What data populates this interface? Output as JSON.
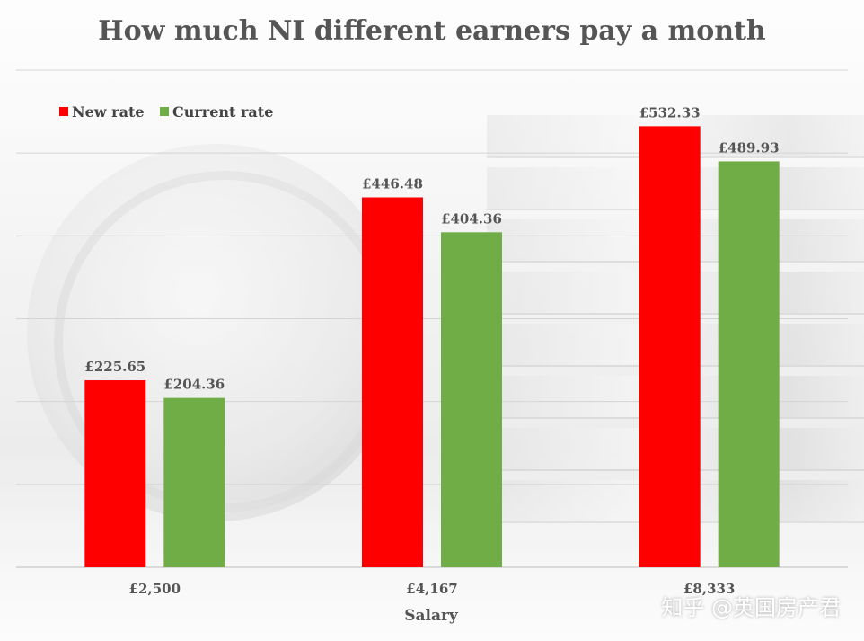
{
  "chart_data": {
    "type": "bar",
    "title": "How much NI different earners pay a month",
    "xlabel": "Salary",
    "ylabel": "",
    "categories": [
      "£2,500",
      "£4,167",
      "£8,333"
    ],
    "series": [
      {
        "name": "New rate",
        "color": "#ff0000",
        "values": [
          225.65,
          446.48,
          532.33
        ],
        "labels": [
          "£225.65",
          "£446.48",
          "£532.33"
        ]
      },
      {
        "name": "Current rate",
        "color": "#70ad47",
        "values": [
          204.36,
          404.36,
          489.93
        ],
        "labels": [
          "£204.36",
          "£404.36",
          "£489.93"
        ]
      }
    ],
    "ylim": [
      0,
      600
    ],
    "grid": true,
    "legend_position": "top-left"
  },
  "watermark": "知乎 @英国房产君"
}
